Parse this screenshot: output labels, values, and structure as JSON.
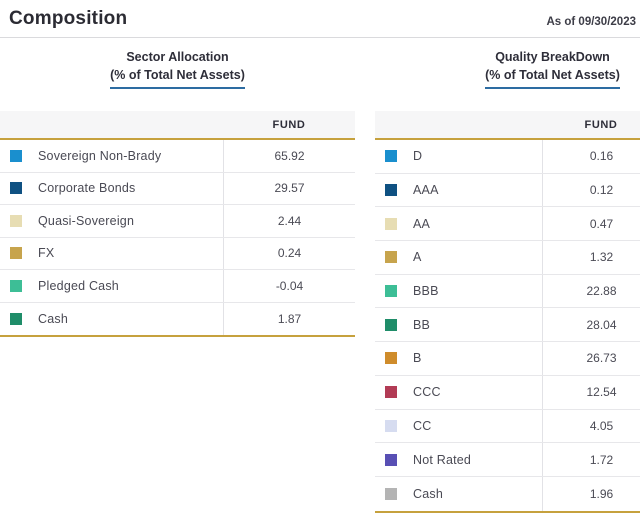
{
  "page": {
    "title": "Composition",
    "as_of": "As of 09/30/2023"
  },
  "colors": {
    "accent_gold": "#C6A13D",
    "underline_blue": "#2D6CA2"
  },
  "sections": [
    {
      "title": "Sector Allocation",
      "subtitle": "(% of Total Net Assets)",
      "column_header": "FUND",
      "rows": [
        {
          "label": "Sovereign Non-Brady",
          "value": "65.92",
          "swatch": "#1A8FCE"
        },
        {
          "label": "Corporate Bonds",
          "value": "29.57",
          "swatch": "#0F5182"
        },
        {
          "label": "Quasi-Sovereign",
          "value": "2.44",
          "swatch": "#E7DDB3"
        },
        {
          "label": "FX",
          "value": "0.24",
          "swatch": "#C7A44D"
        },
        {
          "label": "Pledged Cash",
          "value": "-0.04",
          "swatch": "#3DBE96"
        },
        {
          "label": "Cash",
          "value": "1.87",
          "swatch": "#1F8D69"
        }
      ]
    },
    {
      "title": "Quality BreakDown",
      "subtitle": "(% of Total Net Assets)",
      "column_header": "FUND",
      "rows": [
        {
          "label": "D",
          "value": "0.16",
          "swatch": "#1A8FCE"
        },
        {
          "label": "AAA",
          "value": "0.12",
          "swatch": "#0F5182"
        },
        {
          "label": "AA",
          "value": "0.47",
          "swatch": "#E7DDB3"
        },
        {
          "label": "A",
          "value": "1.32",
          "swatch": "#C7A44D"
        },
        {
          "label": "BBB",
          "value": "22.88",
          "swatch": "#3DBE96"
        },
        {
          "label": "BB",
          "value": "28.04",
          "swatch": "#1F8D69"
        },
        {
          "label": "B",
          "value": "26.73",
          "swatch": "#CF8C2B"
        },
        {
          "label": "CCC",
          "value": "12.54",
          "swatch": "#B23B55"
        },
        {
          "label": "CC",
          "value": "4.05",
          "swatch": "#D6DCF0"
        },
        {
          "label": "Not Rated",
          "value": "1.72",
          "swatch": "#584FB4"
        },
        {
          "label": "Cash",
          "value": "1.96",
          "swatch": "#B4B4B4"
        }
      ]
    }
  ]
}
